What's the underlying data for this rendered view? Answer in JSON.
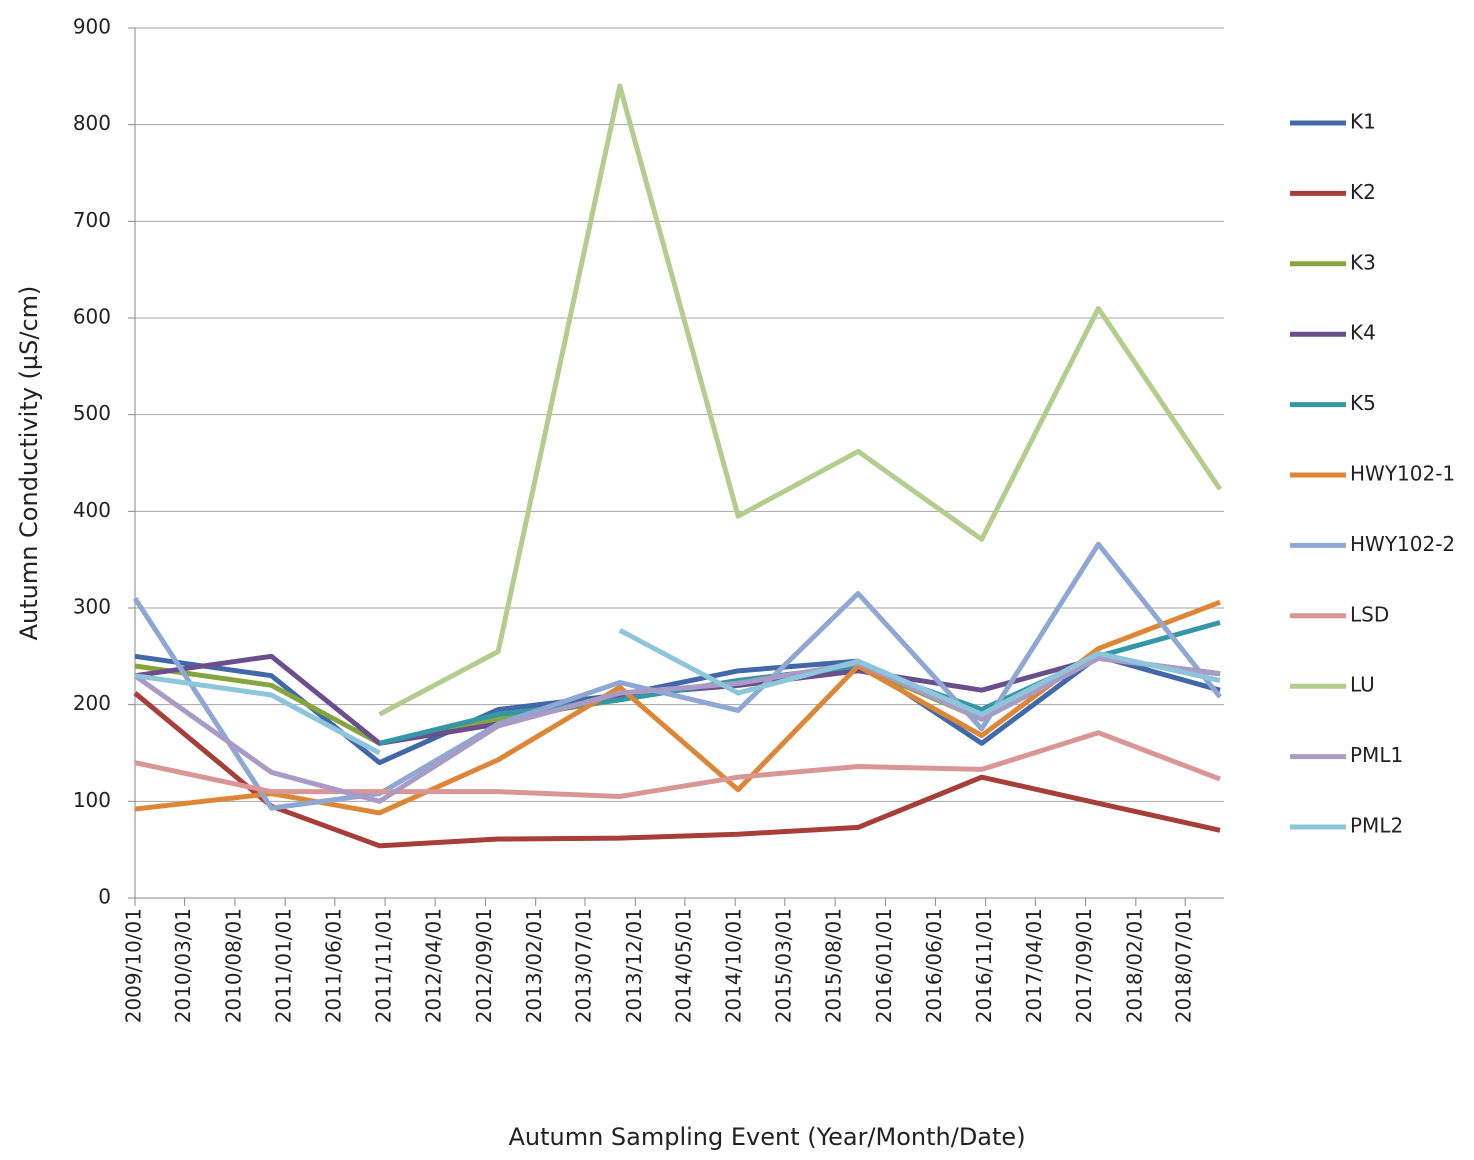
{
  "chart_data": {
    "type": "line",
    "y_label": "Autumn Conductivity (µS/cm)",
    "x_label": "Autumn Sampling Event (Year/Month/Date)",
    "x": [
      "2009/10/01",
      "2010/11/20",
      "2011/10/15",
      "2012/10/10",
      "2013/10/15",
      "2014/10/10",
      "2015/10/10",
      "2016/10/20",
      "2017/10/10",
      "2018/10/15"
    ],
    "xlim": [
      "2009/10/01",
      "2018/10/15"
    ],
    "xticks": [
      "2009/10/01",
      "2010/03/01",
      "2010/08/01",
      "2011/01/01",
      "2011/06/01",
      "2011/11/01",
      "2012/04/01",
      "2012/09/01",
      "2013/02/01",
      "2013/07/01",
      "2013/12/01",
      "2014/05/01",
      "2014/10/01",
      "2015/03/01",
      "2015/08/01",
      "2016/01/01",
      "2016/06/01",
      "2016/11/01",
      "2017/04/01",
      "2017/09/01",
      "2018/02/01",
      "2018/07/01"
    ],
    "ylim": [
      0,
      900
    ],
    "yticks": [
      0,
      100,
      200,
      300,
      400,
      500,
      600,
      700,
      800,
      900
    ],
    "grid": true,
    "legend": "right",
    "series": [
      {
        "name": "K1",
        "color": "#4169a9",
        "values": [
          250,
          230,
          140,
          195,
          210,
          235,
          245,
          160,
          250,
          215
        ]
      },
      {
        "name": "K2",
        "color": "#a83e3a",
        "values": [
          212,
          95,
          54,
          61,
          62,
          66,
          73,
          125,
          98,
          70
        ]
      },
      {
        "name": "K3",
        "color": "#86a53e",
        "values": [
          240,
          220,
          160,
          185,
          205,
          225,
          240,
          185,
          248,
          232
        ]
      },
      {
        "name": "K4",
        "color": "#6b4f8c",
        "values": [
          230,
          250,
          160,
          180,
          210,
          220,
          235,
          215,
          248,
          232
        ]
      },
      {
        "name": "K5",
        "color": "#3497a8",
        "values": [
          null,
          null,
          160,
          190,
          205,
          225,
          240,
          195,
          250,
          285
        ]
      },
      {
        "name": "HWY102-1",
        "color": "#dd8636",
        "values": [
          92,
          108,
          88,
          143,
          218,
          112,
          240,
          168,
          258,
          306
        ]
      },
      {
        "name": "HWY102-2",
        "color": "#8ea7d3",
        "values": [
          310,
          93,
          108,
          180,
          223,
          194,
          315,
          175,
          366,
          208
        ]
      },
      {
        "name": "LSD",
        "color": "#d99694",
        "values": [
          140,
          110,
          110,
          110,
          105,
          125,
          136,
          133,
          171,
          123
        ]
      },
      {
        "name": "LU",
        "color": "#b2cd8c",
        "values": [
          null,
          null,
          190,
          255,
          840,
          395,
          462,
          371,
          610,
          423
        ]
      },
      {
        "name": "PML1",
        "color": "#a99bc6",
        "values": [
          230,
          130,
          100,
          178,
          212,
          222,
          243,
          185,
          248,
          232
        ]
      },
      {
        "name": "PML2",
        "color": "#8dc6da",
        "values": [
          230,
          210,
          150,
          null,
          277,
          212,
          245,
          190,
          253,
          225
        ]
      }
    ]
  }
}
